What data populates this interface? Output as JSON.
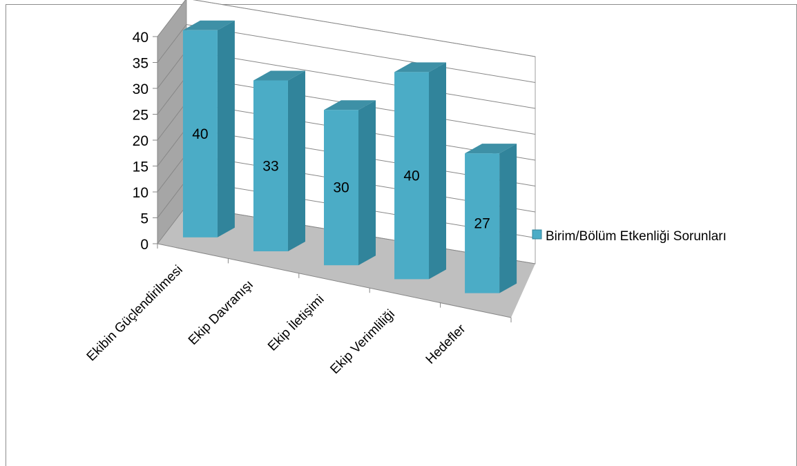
{
  "chart_data": {
    "type": "bar",
    "style": "3d-column",
    "title": "",
    "xlabel": "",
    "ylabel": "",
    "ylim": [
      0,
      40
    ],
    "yticks": [
      0,
      5,
      10,
      15,
      20,
      25,
      30,
      35,
      40
    ],
    "grid": true,
    "legend_position": "right",
    "categories": [
      "Ekibin Güçlendirilmesi",
      "Ekip Davranışı",
      "Ekip İletişimi",
      "Ekip Verimliliği",
      "Hedefler"
    ],
    "series": [
      {
        "name": "Birim/Bölüm Etkenliği Sorunları",
        "values": [
          40,
          33,
          30,
          40,
          27
        ],
        "data_labels": [
          "40",
          "33",
          "30",
          "40",
          "27"
        ],
        "color_front": "#4bacc6",
        "color_side": "#31849b",
        "color_top": "#3e90a6"
      }
    ],
    "colors": {
      "wall": "#ffffff",
      "side_wall": "#a6a6a6",
      "floor": "#bfbfbf",
      "grid": "#868686",
      "axis": "#868686"
    }
  }
}
